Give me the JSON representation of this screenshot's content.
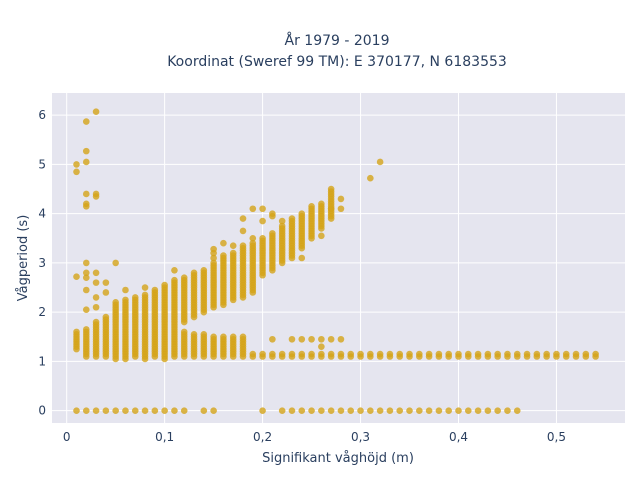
{
  "chart_data": {
    "type": "scatter",
    "title_line1": "År 1979 - 2019",
    "title_line2": "Koordinat (Sweref 99 TM): E 370177, N 6183553",
    "xlabel": "Signifikant våghöjd (m)",
    "ylabel": "Vågperiod (s)",
    "xlim": [
      -0.015,
      0.57
    ],
    "ylim": [
      -0.25,
      6.45
    ],
    "x_ticks": [
      {
        "value": 0,
        "label": "0"
      },
      {
        "value": 0.1,
        "label": "0,1"
      },
      {
        "value": 0.2,
        "label": "0,2"
      },
      {
        "value": 0.3,
        "label": "0,3"
      },
      {
        "value": 0.4,
        "label": "0,4"
      },
      {
        "value": 0.5,
        "label": "0,5"
      }
    ],
    "y_ticks": [
      {
        "value": 0,
        "label": "0"
      },
      {
        "value": 1,
        "label": "1"
      },
      {
        "value": 2,
        "label": "2"
      },
      {
        "value": 3,
        "label": "3"
      },
      {
        "value": 4,
        "label": "4"
      },
      {
        "value": 5,
        "label": "5"
      },
      {
        "value": 6,
        "label": "6"
      }
    ],
    "grid": true,
    "marker_color": "#d4a419",
    "background_color": "#e5e5ef",
    "columns": [
      {
        "x": 0.01,
        "ranges": [
          [
            1.25,
            1.6
          ]
        ],
        "points": [
          2.72,
          4.85,
          5.0,
          0
        ]
      },
      {
        "x": 0.02,
        "ranges": [
          [
            1.1,
            1.65
          ]
        ],
        "points": [
          2.05,
          2.45,
          2.7,
          2.8,
          3.0,
          4.15,
          4.2,
          4.4,
          5.05,
          5.27,
          5.87,
          0
        ]
      },
      {
        "x": 0.03,
        "ranges": [
          [
            1.1,
            1.8
          ]
        ],
        "points": [
          2.1,
          2.3,
          2.6,
          2.8,
          4.35,
          4.4,
          6.07,
          0
        ]
      },
      {
        "x": 0.04,
        "ranges": [
          [
            1.1,
            1.9
          ]
        ],
        "points": [
          2.4,
          2.6,
          0
        ]
      },
      {
        "x": 0.05,
        "ranges": [
          [
            1.05,
            2.2
          ]
        ],
        "points": [
          3.0,
          0
        ]
      },
      {
        "x": 0.06,
        "ranges": [
          [
            1.05,
            2.25
          ]
        ],
        "points": [
          2.45,
          0
        ]
      },
      {
        "x": 0.07,
        "ranges": [
          [
            1.1,
            2.3
          ]
        ],
        "points": [
          0
        ]
      },
      {
        "x": 0.08,
        "ranges": [
          [
            1.05,
            2.35
          ]
        ],
        "points": [
          2.5,
          0
        ]
      },
      {
        "x": 0.09,
        "ranges": [
          [
            1.1,
            2.45
          ]
        ],
        "points": [
          0
        ]
      },
      {
        "x": 0.1,
        "ranges": [
          [
            1.05,
            2.55
          ]
        ],
        "points": [
          0
        ]
      },
      {
        "x": 0.11,
        "ranges": [
          [
            1.1,
            2.65
          ]
        ],
        "points": [
          2.85,
          0
        ]
      },
      {
        "x": 0.12,
        "ranges": [
          [
            1.1,
            1.6
          ],
          [
            1.8,
            2.7
          ]
        ],
        "points": [
          0
        ]
      },
      {
        "x": 0.13,
        "ranges": [
          [
            1.1,
            1.55
          ],
          [
            1.9,
            2.8
          ]
        ],
        "points": []
      },
      {
        "x": 0.14,
        "ranges": [
          [
            1.1,
            1.55
          ],
          [
            2.0,
            2.85
          ]
        ],
        "points": [
          0
        ]
      },
      {
        "x": 0.15,
        "ranges": [
          [
            1.1,
            1.5
          ],
          [
            2.1,
            3.0
          ]
        ],
        "points": [
          3.1,
          3.2,
          3.28,
          0
        ]
      },
      {
        "x": 0.16,
        "ranges": [
          [
            1.1,
            1.5
          ],
          [
            2.15,
            3.15
          ]
        ],
        "points": [
          3.4
        ]
      },
      {
        "x": 0.17,
        "ranges": [
          [
            1.1,
            1.5
          ],
          [
            2.25,
            3.2
          ]
        ],
        "points": [
          3.35
        ]
      },
      {
        "x": 0.18,
        "ranges": [
          [
            1.1,
            1.5
          ],
          [
            2.3,
            3.3
          ]
        ],
        "points": [
          3.35,
          3.65,
          3.9
        ]
      },
      {
        "x": 0.19,
        "ranges": [
          [
            1.1,
            1.15
          ],
          [
            2.4,
            3.4
          ]
        ],
        "points": [
          3.5,
          4.1
        ]
      },
      {
        "x": 0.2,
        "ranges": [
          [
            1.1,
            1.15
          ],
          [
            2.75,
            3.5
          ]
        ],
        "points": [
          3.85,
          4.1,
          0
        ]
      },
      {
        "x": 0.21,
        "ranges": [
          [
            1.1,
            1.15
          ],
          [
            2.85,
            3.6
          ]
        ],
        "points": [
          1.45,
          3.95,
          4.0
        ]
      },
      {
        "x": 0.22,
        "ranges": [
          [
            1.1,
            1.15
          ],
          [
            3.0,
            3.75
          ]
        ],
        "points": [
          3.85,
          0
        ]
      },
      {
        "x": 0.23,
        "ranges": [
          [
            1.1,
            1.15
          ],
          [
            3.1,
            3.9
          ]
        ],
        "points": [
          1.45,
          0
        ]
      },
      {
        "x": 0.24,
        "ranges": [
          [
            1.1,
            1.15
          ],
          [
            3.3,
            4.0
          ]
        ],
        "points": [
          1.45,
          3.1,
          0
        ]
      },
      {
        "x": 0.25,
        "ranges": [
          [
            1.1,
            1.15
          ],
          [
            3.5,
            4.15
          ]
        ],
        "points": [
          1.45,
          0
        ]
      },
      {
        "x": 0.26,
        "ranges": [
          [
            1.1,
            1.15
          ],
          [
            3.7,
            4.2
          ]
        ],
        "points": [
          1.45,
          1.3,
          3.55,
          0
        ]
      },
      {
        "x": 0.27,
        "ranges": [
          [
            1.1,
            1.15
          ],
          [
            3.9,
            4.5
          ]
        ],
        "points": [
          1.45,
          4.1,
          0
        ]
      },
      {
        "x": 0.28,
        "ranges": [
          [
            1.1,
            1.15
          ]
        ],
        "points": [
          1.45,
          4.1,
          4.3,
          0
        ]
      },
      {
        "x": 0.29,
        "ranges": [
          [
            1.1,
            1.15
          ]
        ],
        "points": [
          0
        ]
      },
      {
        "x": 0.3,
        "ranges": [
          [
            1.1,
            1.15
          ]
        ],
        "points": [
          0
        ]
      },
      {
        "x": 0.31,
        "ranges": [
          [
            1.1,
            1.15
          ]
        ],
        "points": [
          4.72,
          0
        ]
      },
      {
        "x": 0.32,
        "ranges": [
          [
            1.1,
            1.15
          ]
        ],
        "points": [
          5.05,
          0
        ]
      },
      {
        "x": 0.33,
        "ranges": [
          [
            1.1,
            1.15
          ]
        ],
        "points": [
          0
        ]
      },
      {
        "x": 0.34,
        "ranges": [
          [
            1.1,
            1.15
          ]
        ],
        "points": [
          0
        ]
      },
      {
        "x": 0.35,
        "ranges": [
          [
            1.1,
            1.15
          ]
        ],
        "points": [
          0
        ]
      },
      {
        "x": 0.36,
        "ranges": [
          [
            1.1,
            1.15
          ]
        ],
        "points": [
          0
        ]
      },
      {
        "x": 0.37,
        "ranges": [
          [
            1.1,
            1.15
          ]
        ],
        "points": [
          0
        ]
      },
      {
        "x": 0.38,
        "ranges": [
          [
            1.1,
            1.15
          ]
        ],
        "points": [
          0
        ]
      },
      {
        "x": 0.39,
        "ranges": [
          [
            1.1,
            1.15
          ]
        ],
        "points": [
          0
        ]
      },
      {
        "x": 0.4,
        "ranges": [
          [
            1.1,
            1.15
          ]
        ],
        "points": [
          0
        ]
      },
      {
        "x": 0.41,
        "ranges": [
          [
            1.1,
            1.15
          ]
        ],
        "points": [
          0
        ]
      },
      {
        "x": 0.42,
        "ranges": [
          [
            1.1,
            1.15
          ]
        ],
        "points": [
          0
        ]
      },
      {
        "x": 0.43,
        "ranges": [
          [
            1.1,
            1.15
          ]
        ],
        "points": [
          0
        ]
      },
      {
        "x": 0.44,
        "ranges": [
          [
            1.1,
            1.15
          ]
        ],
        "points": [
          0
        ]
      },
      {
        "x": 0.45,
        "ranges": [
          [
            1.1,
            1.15
          ]
        ],
        "points": [
          0
        ]
      },
      {
        "x": 0.46,
        "ranges": [
          [
            1.1,
            1.15
          ]
        ],
        "points": [
          0
        ]
      },
      {
        "x": 0.47,
        "ranges": [
          [
            1.1,
            1.15
          ]
        ],
        "points": []
      },
      {
        "x": 0.48,
        "ranges": [
          [
            1.1,
            1.15
          ]
        ],
        "points": []
      },
      {
        "x": 0.49,
        "ranges": [
          [
            1.1,
            1.15
          ]
        ],
        "points": []
      },
      {
        "x": 0.5,
        "ranges": [
          [
            1.1,
            1.15
          ]
        ],
        "points": []
      },
      {
        "x": 0.51,
        "ranges": [
          [
            1.1,
            1.15
          ]
        ],
        "points": []
      },
      {
        "x": 0.52,
        "ranges": [
          [
            1.1,
            1.15
          ]
        ],
        "points": []
      },
      {
        "x": 0.53,
        "ranges": [
          [
            1.1,
            1.15
          ]
        ],
        "points": []
      },
      {
        "x": 0.54,
        "ranges": [
          [
            1.1,
            1.15
          ]
        ],
        "points": []
      }
    ]
  }
}
